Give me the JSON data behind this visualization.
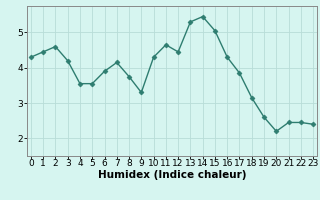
{
  "x": [
    0,
    1,
    2,
    3,
    4,
    5,
    6,
    7,
    8,
    9,
    10,
    11,
    12,
    13,
    14,
    15,
    16,
    17,
    18,
    19,
    20,
    21,
    22,
    23
  ],
  "y": [
    4.3,
    4.45,
    4.6,
    4.2,
    3.55,
    3.55,
    3.9,
    4.15,
    3.75,
    3.3,
    4.3,
    4.65,
    4.45,
    5.3,
    5.45,
    5.05,
    4.3,
    3.85,
    3.15,
    2.6,
    2.2,
    2.45,
    2.45,
    2.4
  ],
  "line_color": "#2e7d70",
  "marker": "D",
  "marker_size": 2.5,
  "line_width": 1.0,
  "bg_color": "#d6f5f0",
  "grid_color": "#b8ddd8",
  "xlabel": "Humidex (Indice chaleur)",
  "xlabel_fontsize": 7.5,
  "tick_fontsize": 6.5,
  "ylim": [
    1.5,
    5.75
  ],
  "yticks": [
    2,
    3,
    4,
    5
  ],
  "xlim": [
    -0.3,
    23.3
  ]
}
